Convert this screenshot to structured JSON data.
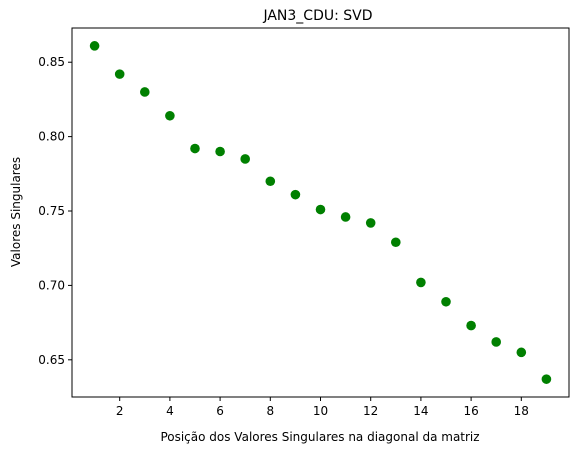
{
  "chart_data": {
    "type": "scatter",
    "title": "JAN3_CDU: SVD",
    "xlabel": "Posição dos Valores Singulares na diagonal da matriz",
    "ylabel": "Valores Singulares",
    "xlim": [
      0.1,
      19.9
    ],
    "ylim": [
      0.625,
      0.873
    ],
    "xticks": [
      2,
      4,
      6,
      8,
      10,
      12,
      14,
      16,
      18
    ],
    "xtick_labels": [
      "2",
      "4",
      "6",
      "8",
      "10",
      "12",
      "14",
      "16",
      "18"
    ],
    "yticks": [
      0.65,
      0.7,
      0.75,
      0.8,
      0.85
    ],
    "ytick_labels": [
      "0.65",
      "0.70",
      "0.75",
      "0.80",
      "0.85"
    ],
    "grid": false,
    "marker_color": "#008000",
    "x": [
      1,
      2,
      3,
      4,
      5,
      6,
      7,
      8,
      9,
      10,
      11,
      12,
      13,
      14,
      15,
      16,
      17,
      18,
      19
    ],
    "y": [
      0.861,
      0.842,
      0.83,
      0.814,
      0.792,
      0.79,
      0.785,
      0.77,
      0.761,
      0.751,
      0.746,
      0.742,
      0.729,
      0.702,
      0.689,
      0.673,
      0.662,
      0.655,
      0.637
    ]
  }
}
